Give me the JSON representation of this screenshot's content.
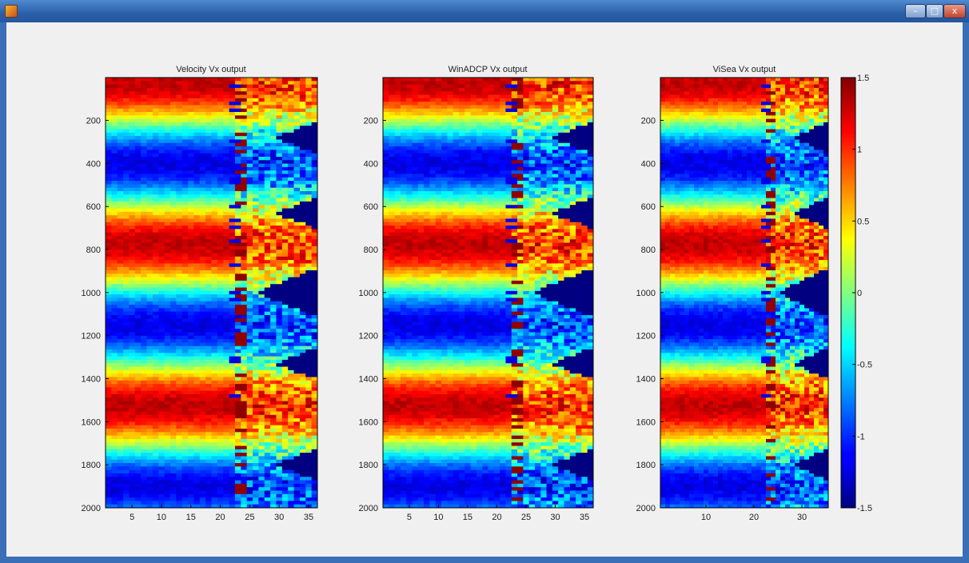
{
  "window": {
    "min_label": "–",
    "max_label": "□",
    "close_label": "x"
  },
  "chart_data": [
    {
      "type": "heatmap",
      "title": "Velocity Vx output",
      "xlim": [
        0.5,
        36.5
      ],
      "ylim": [
        2000,
        1
      ],
      "y_reversed": true,
      "xticks": [
        5,
        10,
        15,
        20,
        25,
        30,
        35
      ],
      "yticks": [
        200,
        400,
        600,
        800,
        1000,
        1200,
        1400,
        1600,
        1800,
        2000
      ],
      "colormap": "jet",
      "clim": [
        -1.5,
        1.5
      ]
    },
    {
      "type": "heatmap",
      "title": "WinADCP Vx output",
      "xlim": [
        0.5,
        36.5
      ],
      "ylim": [
        2000,
        1
      ],
      "y_reversed": true,
      "xticks": [
        5,
        10,
        15,
        20,
        25,
        30,
        35
      ],
      "yticks": [
        200,
        400,
        600,
        800,
        1000,
        1200,
        1400,
        1600,
        1800,
        2000
      ],
      "colormap": "jet",
      "clim": [
        -1.5,
        1.5
      ]
    },
    {
      "type": "heatmap",
      "title": "ViSea Vx output",
      "xlim": [
        0.5,
        35.5
      ],
      "ylim": [
        2000,
        1
      ],
      "y_reversed": true,
      "xticks": [
        10,
        20,
        30
      ],
      "yticks": [
        200,
        400,
        600,
        800,
        1000,
        1200,
        1400,
        1600,
        1800,
        2000
      ],
      "colormap": "jet",
      "clim": [
        -1.5,
        1.5
      ]
    }
  ],
  "colorbar": {
    "ticks": [
      1.5,
      1,
      0.5,
      0,
      -0.5,
      -1,
      -1.5
    ],
    "tick_labels": [
      "1.5",
      "1",
      "0.5",
      "0",
      "-0.5",
      "-1",
      "-1.5"
    ],
    "colormap": "jet"
  }
}
